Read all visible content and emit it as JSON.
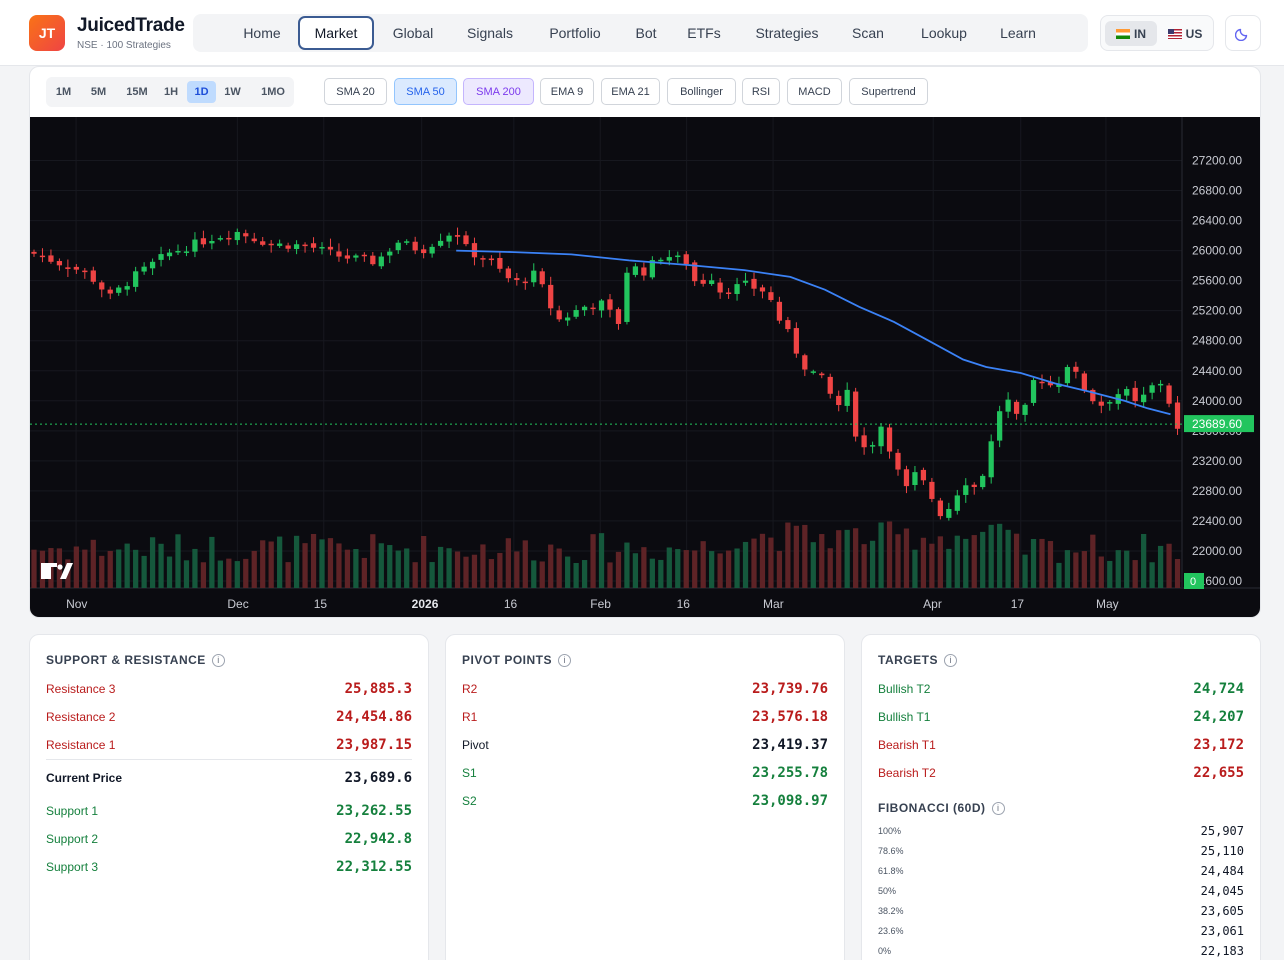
{
  "brand": {
    "logo": "JT",
    "name": "JuicedTrade",
    "subtitle": "NSE · 100 Strategies"
  },
  "nav": [
    {
      "label": "Home",
      "active": false
    },
    {
      "label": "Market",
      "active": true
    },
    {
      "label": "Global",
      "active": false
    },
    {
      "label": "Signals",
      "active": false
    },
    {
      "label": "Portfolio",
      "active": false
    },
    {
      "label": "Bot",
      "active": false
    },
    {
      "label": "ETFs",
      "active": false
    },
    {
      "label": "Strategies",
      "active": false
    },
    {
      "label": "Scan",
      "active": false
    },
    {
      "label": "Lookup",
      "active": false
    },
    {
      "label": "Learn",
      "active": false
    }
  ],
  "region": {
    "in_label": "IN",
    "us_label": "US",
    "selected": "IN"
  },
  "theme_icon": "moon-icon",
  "timeframes": [
    {
      "label": "1M",
      "active": false
    },
    {
      "label": "5M",
      "active": false
    },
    {
      "label": "15M",
      "active": false
    },
    {
      "label": "1H",
      "active": false
    },
    {
      "label": "1D",
      "active": true
    },
    {
      "label": "1W",
      "active": false
    },
    {
      "label": "1MO",
      "active": false
    }
  ],
  "indicators": [
    {
      "label": "SMA 20",
      "state": "off"
    },
    {
      "label": "SMA 50",
      "state": "blue"
    },
    {
      "label": "SMA 200",
      "state": "purple"
    },
    {
      "label": "EMA 9",
      "state": "off"
    },
    {
      "label": "EMA 21",
      "state": "off"
    },
    {
      "label": "Bollinger",
      "state": "off"
    },
    {
      "label": "RSI",
      "state": "off"
    },
    {
      "label": "MACD",
      "state": "off"
    },
    {
      "label": "Supertrend",
      "state": "off"
    }
  ],
  "chart_data": {
    "type": "candlestick",
    "price_axis_labels": [
      "27200.00",
      "26800.00",
      "26400.00",
      "26000.00",
      "25600.00",
      "25200.00",
      "24800.00",
      "24400.00",
      "24000.00",
      "23600.00",
      "23200.00",
      "22800.00",
      "22400.00",
      "22000.00",
      "21600.00"
    ],
    "ylim": [
      21520,
      27380
    ],
    "last_price_label": "23689.60",
    "last_price": 23689.6,
    "volume_label": "0",
    "time_labels": [
      {
        "label": "Nov",
        "bold": false,
        "x": 0.04
      },
      {
        "label": "Dec",
        "bold": false,
        "x": 0.18
      },
      {
        "label": "15",
        "bold": false,
        "x": 0.255
      },
      {
        "label": "2026",
        "bold": true,
        "x": 0.34
      },
      {
        "label": "16",
        "bold": false,
        "x": 0.42
      },
      {
        "label": "Feb",
        "bold": false,
        "x": 0.495
      },
      {
        "label": "16",
        "bold": false,
        "x": 0.57
      },
      {
        "label": "Mar",
        "bold": false,
        "x": 0.645
      },
      {
        "label": "Apr",
        "bold": false,
        "x": 0.784
      },
      {
        "label": "17",
        "bold": false,
        "x": 0.86
      },
      {
        "label": "May",
        "bold": false,
        "x": 0.934
      }
    ],
    "close_path": [
      [
        0,
        25980
      ],
      [
        0.05,
        25700
      ],
      [
        0.07,
        25380
      ],
      [
        0.09,
        25650
      ],
      [
        0.12,
        25960
      ],
      [
        0.16,
        26180
      ],
      [
        0.18,
        26250
      ],
      [
        0.21,
        26080
      ],
      [
        0.24,
        26070
      ],
      [
        0.27,
        25920
      ],
      [
        0.3,
        25850
      ],
      [
        0.32,
        26120
      ],
      [
        0.34,
        26000
      ],
      [
        0.36,
        26210
      ],
      [
        0.37,
        26250
      ],
      [
        0.38,
        26000
      ],
      [
        0.4,
        25850
      ],
      [
        0.42,
        25560
      ],
      [
        0.44,
        25700
      ],
      [
        0.45,
        25300
      ],
      [
        0.46,
        25070
      ],
      [
        0.48,
        25250
      ],
      [
        0.5,
        25300
      ],
      [
        0.51,
        24950
      ],
      [
        0.52,
        25880
      ],
      [
        0.53,
        25680
      ],
      [
        0.55,
        25950
      ],
      [
        0.57,
        25850
      ],
      [
        0.58,
        25500
      ],
      [
        0.59,
        25700
      ],
      [
        0.6,
        25450
      ],
      [
        0.62,
        25550
      ],
      [
        0.64,
        25450
      ],
      [
        0.65,
        25100
      ],
      [
        0.66,
        24850
      ],
      [
        0.67,
        24500
      ],
      [
        0.69,
        24250
      ],
      [
        0.7,
        23900
      ],
      [
        0.71,
        24100
      ],
      [
        0.72,
        23350
      ],
      [
        0.73,
        23400
      ],
      [
        0.74,
        23700
      ],
      [
        0.75,
        23200
      ],
      [
        0.76,
        22800
      ],
      [
        0.77,
        23050
      ],
      [
        0.78,
        22800
      ],
      [
        0.79,
        22500
      ],
      [
        0.8,
        22600
      ],
      [
        0.81,
        22950
      ],
      [
        0.82,
        22850
      ],
      [
        0.83,
        23100
      ],
      [
        0.84,
        23850
      ],
      [
        0.85,
        24000
      ],
      [
        0.86,
        23650
      ],
      [
        0.87,
        24250
      ],
      [
        0.88,
        24300
      ],
      [
        0.89,
        24150
      ],
      [
        0.9,
        24500
      ],
      [
        0.91,
        24300
      ],
      [
        0.92,
        24050
      ],
      [
        0.93,
        23950
      ],
      [
        0.94,
        24050
      ],
      [
        0.95,
        24150
      ],
      [
        0.96,
        23950
      ],
      [
        0.97,
        24100
      ],
      [
        0.98,
        24300
      ],
      [
        0.99,
        23950
      ],
      [
        1.0,
        23400
      ],
      [
        1.01,
        23689
      ]
    ],
    "sma50": [
      [
        0.37,
        26000
      ],
      [
        0.42,
        25980
      ],
      [
        0.47,
        25950
      ],
      [
        0.52,
        25870
      ],
      [
        0.57,
        25810
      ],
      [
        0.62,
        25740
      ],
      [
        0.66,
        25650
      ],
      [
        0.69,
        25480
      ],
      [
        0.72,
        25250
      ],
      [
        0.75,
        25050
      ],
      [
        0.78,
        24800
      ],
      [
        0.81,
        24550
      ],
      [
        0.83,
        24450
      ],
      [
        0.86,
        24370
      ],
      [
        0.89,
        24230
      ],
      [
        0.92,
        24120
      ],
      [
        0.95,
        24000
      ],
      [
        0.97,
        23900
      ],
      [
        0.99,
        23820
      ]
    ],
    "sma50_start_x": 0.37
  },
  "colors": {
    "bull": "#22c55e",
    "bear": "#ef4444",
    "vol_bull": "#15583c",
    "vol_bear": "#5e2326",
    "sma50": "#3b82f6",
    "last_price": "#22c55e",
    "grid": "#17181f"
  },
  "support_resistance": {
    "title": "SUPPORT & RESISTANCE",
    "rows": [
      {
        "label": "Resistance 3",
        "value": "25,885.3",
        "tone": "red"
      },
      {
        "label": "Resistance 2",
        "value": "24,454.86",
        "tone": "red"
      },
      {
        "label": "Resistance 1",
        "value": "23,987.15",
        "tone": "red"
      },
      {
        "label": "Current Price",
        "value": "23,689.6",
        "tone": "dark"
      },
      {
        "label": "Support 1",
        "value": "23,262.55",
        "tone": "green"
      },
      {
        "label": "Support 2",
        "value": "22,942.8",
        "tone": "green"
      },
      {
        "label": "Support 3",
        "value": "22,312.55",
        "tone": "green"
      }
    ]
  },
  "pivot_points": {
    "title": "PIVOT POINTS",
    "rows": [
      {
        "label": "R2",
        "value": "23,739.76",
        "tone": "red"
      },
      {
        "label": "R1",
        "value": "23,576.18",
        "tone": "red"
      },
      {
        "label": "Pivot",
        "value": "23,419.37",
        "tone": "dark"
      },
      {
        "label": "S1",
        "value": "23,255.78",
        "tone": "green"
      },
      {
        "label": "S2",
        "value": "23,098.97",
        "tone": "green"
      }
    ]
  },
  "targets": {
    "title": "TARGETS",
    "rows": [
      {
        "label": "Bullish T2",
        "value": "24,724",
        "tone": "green"
      },
      {
        "label": "Bullish T1",
        "value": "24,207",
        "tone": "green"
      },
      {
        "label": "Bearish T1",
        "value": "23,172",
        "tone": "red"
      },
      {
        "label": "Bearish T2",
        "value": "22,655",
        "tone": "red"
      }
    ]
  },
  "fibonacci": {
    "title": "FIBONACCI (60D)",
    "rows": [
      {
        "label": "100%",
        "value": "25,907"
      },
      {
        "label": "78.6%",
        "value": "25,110"
      },
      {
        "label": "61.8%",
        "value": "24,484"
      },
      {
        "label": "50%",
        "value": "24,045"
      },
      {
        "label": "38.2%",
        "value": "23,605"
      },
      {
        "label": "23.6%",
        "value": "23,061"
      },
      {
        "label": "0%",
        "value": "22,183"
      }
    ]
  }
}
